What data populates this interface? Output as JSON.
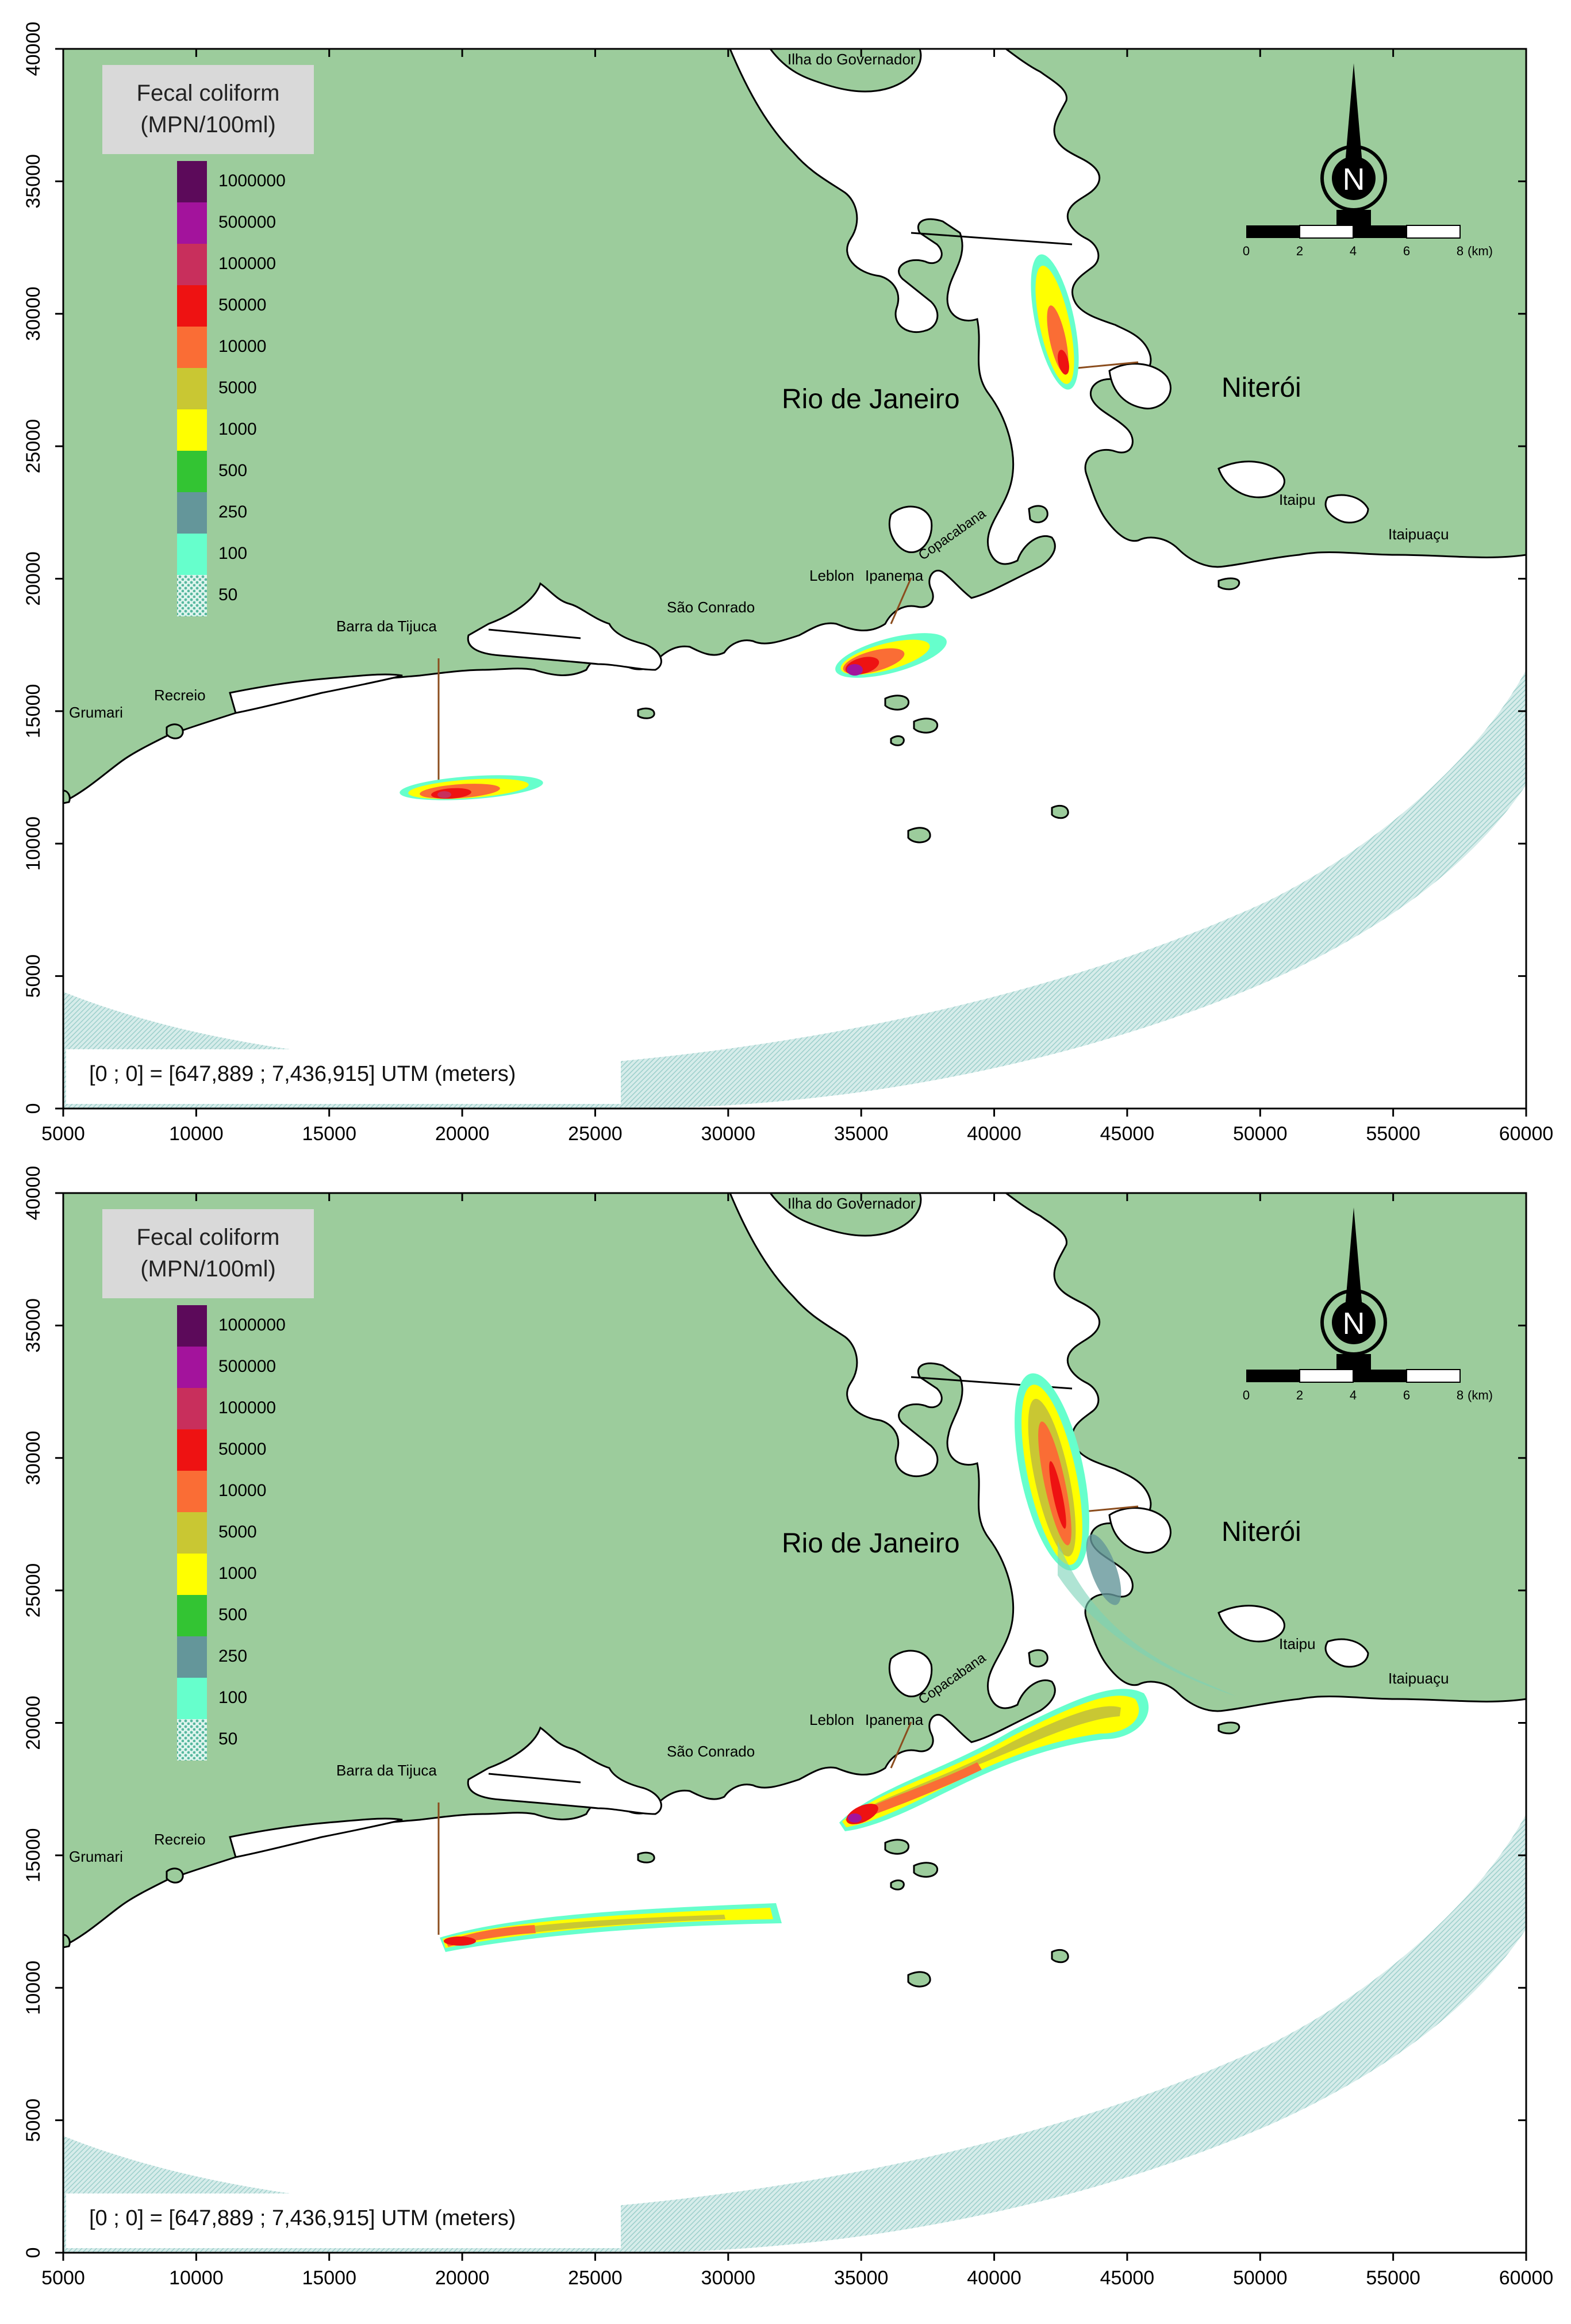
{
  "panels": [
    {
      "id": "top",
      "legend_title_line1": "Fecal coliform",
      "legend_title_line2": "(MPN/100ml)",
      "origin_note": "[0 ; 0] = [647,889  ; 7,436,915]  UTM (meters)"
    },
    {
      "id": "bottom",
      "legend_title_line1": "Fecal coliform",
      "legend_title_line2": "(MPN/100ml)",
      "origin_note": "[0 ; 0] = [647,889  ; 7,436,915]  UTM (meters)"
    }
  ],
  "axes": {
    "x_ticks": [
      "5000",
      "10000",
      "15000",
      "20000",
      "25000",
      "30000",
      "35000",
      "40000",
      "45000",
      "50000",
      "55000",
      "60000"
    ],
    "y_ticks": [
      "0",
      "5000",
      "10000",
      "15000",
      "20000",
      "25000",
      "30000",
      "35000",
      "40000"
    ],
    "x_range": [
      5000,
      60000
    ],
    "y_range": [
      0,
      40000
    ]
  },
  "legend": {
    "classes": [
      {
        "value": "1000000",
        "color": "#5c0a5a"
      },
      {
        "value": "500000",
        "color": "#a3139c"
      },
      {
        "value": "100000",
        "color": "#c82f5c"
      },
      {
        "value": "50000",
        "color": "#ee1212"
      },
      {
        "value": "10000",
        "color": "#fa6d35"
      },
      {
        "value": "5000",
        "color": "#c9c733"
      },
      {
        "value": "1000",
        "color": "#ffff00"
      },
      {
        "value": "500",
        "color": "#33c433"
      },
      {
        "value": "250",
        "color": "#64969a"
      },
      {
        "value": "100",
        "color": "#66ffcc"
      },
      {
        "value": "50",
        "color": "#7ad2b8"
      }
    ]
  },
  "places": {
    "ilha": "Ilha do Governador",
    "rio": "Rio de Janeiro",
    "niteroi": "Niterói",
    "itaipu": "Itaipu",
    "itaipuacu": "Itaipuaçu",
    "leblon": "Leblon",
    "ipanema": "Ipanema",
    "copacabana": "Copacabana",
    "sao_conrado": "São Conrado",
    "barra": "Barra da Tijuca",
    "recreio": "Recreio",
    "grumari": "Grumari"
  },
  "scale_bar": {
    "labels": [
      "0",
      "2",
      "4",
      "6",
      "8"
    ],
    "unit": "(km)",
    "north": "N"
  },
  "colors": {
    "land": "#9ccc9c",
    "water": "#ffffff",
    "coastline": "#000000",
    "hatch": "#b8dcd9",
    "legend_box": "#d9d9d9"
  }
}
